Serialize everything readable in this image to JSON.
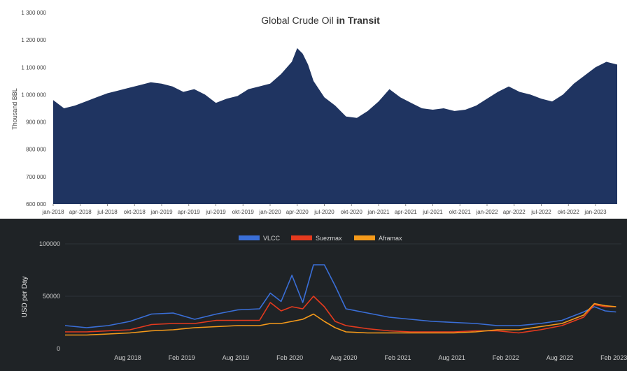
{
  "chart_data": [
    {
      "type": "area",
      "title": "Global Crude Oil",
      "title_bold": "in Transit",
      "ylabel": "Thousand BBL",
      "xlabel": "",
      "ylim": [
        600000,
        1300000
      ],
      "yticks": [
        600000,
        700000,
        800000,
        900000,
        1000000,
        1100000,
        1200000,
        1300000
      ],
      "ytick_labels": [
        "600 000",
        "700 000",
        "800 000",
        "900 000",
        "1 000 000",
        "1 100 000",
        "1 200 000",
        "1 300 000"
      ],
      "xtick_labels": [
        "jan-2018",
        "apr-2018",
        "jul-2018",
        "okt-2018",
        "jan-2019",
        "apr-2019",
        "jul-2019",
        "okt-2019",
        "jan-2020",
        "apr-2020",
        "jul-2020",
        "okt-2020",
        "jan-2021",
        "apr-2021",
        "jul-2021",
        "okt-2021",
        "jan-2022",
        "apr-2022",
        "jul-2022",
        "okt-2022",
        "jan-2023"
      ],
      "grid": false,
      "fill_color": "#1f3461",
      "x": [
        2018.0,
        2018.1,
        2018.2,
        2018.3,
        2018.4,
        2018.5,
        2018.6,
        2018.7,
        2018.8,
        2018.9,
        2019.0,
        2019.1,
        2019.2,
        2019.3,
        2019.4,
        2019.5,
        2019.6,
        2019.7,
        2019.8,
        2019.9,
        2020.0,
        2020.1,
        2020.2,
        2020.25,
        2020.3,
        2020.35,
        2020.4,
        2020.5,
        2020.6,
        2020.7,
        2020.8,
        2020.9,
        2021.0,
        2021.1,
        2021.2,
        2021.3,
        2021.4,
        2021.5,
        2021.6,
        2021.7,
        2021.8,
        2021.9,
        2022.0,
        2022.1,
        2022.2,
        2022.3,
        2022.4,
        2022.5,
        2022.6,
        2022.7,
        2022.8,
        2022.9,
        2023.0,
        2023.1,
        2023.2
      ],
      "values": [
        980000,
        950000,
        960000,
        975000,
        990000,
        1005000,
        1015000,
        1025000,
        1035000,
        1045000,
        1040000,
        1030000,
        1010000,
        1020000,
        1000000,
        970000,
        985000,
        995000,
        1020000,
        1030000,
        1040000,
        1075000,
        1120000,
        1170000,
        1150000,
        1110000,
        1050000,
        990000,
        960000,
        920000,
        915000,
        940000,
        975000,
        1020000,
        990000,
        970000,
        950000,
        945000,
        950000,
        940000,
        945000,
        960000,
        985000,
        1010000,
        1030000,
        1010000,
        1000000,
        985000,
        975000,
        1000000,
        1040000,
        1070000,
        1100000,
        1120000,
        1110000
      ]
    },
    {
      "type": "line",
      "ylabel": "USD per Day",
      "xlabel": "",
      "ylim": [
        0,
        100000
      ],
      "yticks": [
        0,
        50000,
        100000
      ],
      "ytick_labels": [
        "0",
        "50000",
        "100000"
      ],
      "xtick_labels": [
        "Aug 2018",
        "Feb 2019",
        "Aug 2019",
        "Feb 2020",
        "Aug 2020",
        "Feb 2021",
        "Aug 2021",
        "Feb 2022",
        "Aug 2022",
        "Feb 2023"
      ],
      "xtick_values": [
        2018.58,
        2019.08,
        2019.58,
        2020.08,
        2020.58,
        2021.08,
        2021.58,
        2022.08,
        2022.58,
        2023.08
      ],
      "xlim": [
        2018.0,
        2023.15
      ],
      "legend_position": "top-center",
      "x": [
        2018.0,
        2018.2,
        2018.4,
        2018.6,
        2018.8,
        2019.0,
        2019.2,
        2019.4,
        2019.6,
        2019.8,
        2019.9,
        2020.0,
        2020.1,
        2020.2,
        2020.3,
        2020.4,
        2020.5,
        2020.6,
        2020.8,
        2021.0,
        2021.2,
        2021.4,
        2021.6,
        2021.8,
        2022.0,
        2022.2,
        2022.4,
        2022.6,
        2022.8,
        2022.9,
        2023.0,
        2023.1
      ],
      "series": [
        {
          "name": "VLCC",
          "color": "#3a6fd8",
          "values": [
            22000,
            20000,
            22000,
            26000,
            33000,
            34000,
            28000,
            33000,
            37000,
            38000,
            53000,
            45000,
            70000,
            44000,
            80000,
            80000,
            60000,
            38000,
            34000,
            30000,
            28000,
            26000,
            25000,
            24000,
            22000,
            22000,
            24000,
            27000,
            35000,
            40000,
            36000,
            35000
          ]
        },
        {
          "name": "Suezmax",
          "color": "#e53a1e",
          "values": [
            16000,
            16000,
            17000,
            18000,
            23000,
            24000,
            24000,
            27000,
            27000,
            27000,
            44000,
            36000,
            40000,
            38000,
            50000,
            40000,
            26000,
            22000,
            19000,
            17000,
            16000,
            16000,
            16000,
            17000,
            17000,
            15000,
            18000,
            22000,
            30000,
            42000,
            40000,
            40000
          ]
        },
        {
          "name": "Aframax",
          "color": "#f59a1a",
          "values": [
            13000,
            13000,
            14000,
            15000,
            17000,
            18000,
            20000,
            21000,
            22000,
            22000,
            24000,
            24000,
            26000,
            28000,
            33000,
            26000,
            20000,
            16000,
            15000,
            15000,
            15000,
            15000,
            15000,
            16000,
            18000,
            18000,
            21000,
            24000,
            32000,
            43000,
            41000,
            40000
          ]
        }
      ]
    }
  ]
}
